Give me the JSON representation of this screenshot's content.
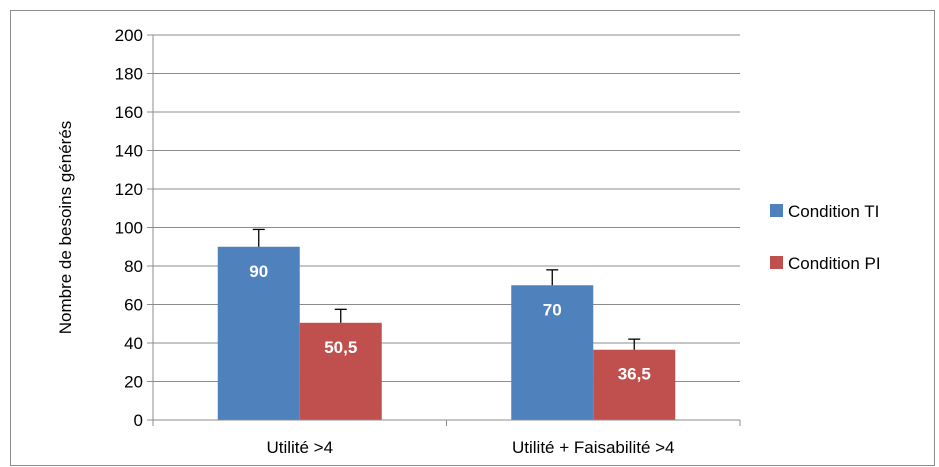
{
  "chart_data": {
    "type": "bar",
    "categories": [
      "Utilité >4",
      "Utilité + Faisabilité >4"
    ],
    "series": [
      {
        "name": "Condition TI",
        "values": [
          90,
          70
        ],
        "errors": [
          9,
          8
        ],
        "labels": [
          "90",
          "70"
        ],
        "color": "#4f81bd"
      },
      {
        "name": "Condition PI",
        "values": [
          50.5,
          36.5
        ],
        "errors": [
          7,
          5.5
        ],
        "labels": [
          "50,5",
          "36,5"
        ],
        "color": "#c0504d"
      }
    ],
    "ylabel": "Nombre de besoins  générés",
    "xlabel": "",
    "title": "",
    "ylim": [
      0,
      200
    ],
    "yticks": [
      "0",
      "20",
      "40",
      "60",
      "80",
      "100",
      "120",
      "140",
      "160",
      "180",
      "200"
    ],
    "grid": true,
    "legend_position": "right"
  }
}
